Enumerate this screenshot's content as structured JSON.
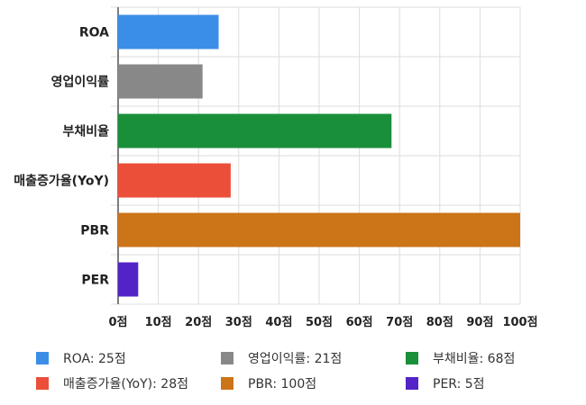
{
  "chart_data": {
    "type": "bar",
    "orientation": "horizontal",
    "categories": [
      "ROA",
      "영업이익률",
      "부채비율",
      "매출증가율(YoY)",
      "PBR",
      "PER"
    ],
    "values": [
      25,
      21,
      68,
      28,
      100,
      5
    ],
    "colors": [
      "#3b8ee6",
      "#888888",
      "#1a8f3a",
      "#eb4f3a",
      "#cc7418",
      "#5323c7"
    ],
    "xlim": [
      0,
      100
    ],
    "x_ticks": [
      "0점",
      "10점",
      "20점",
      "30점",
      "40점",
      "50점",
      "60점",
      "70점",
      "80점",
      "90점",
      "100점"
    ],
    "grid": true,
    "legend_position": "bottom",
    "legend": [
      {
        "label": "ROA: 25점",
        "color": "#3b8ee6"
      },
      {
        "label": "영업이익률: 21점",
        "color": "#888888"
      },
      {
        "label": "부채비율: 68점",
        "color": "#1a8f3a"
      },
      {
        "label": "매출증가율(YoY): 28점",
        "color": "#eb4f3a"
      },
      {
        "label": "PBR: 100점",
        "color": "#cc7418"
      },
      {
        "label": "PER: 5점",
        "color": "#5323c7"
      }
    ]
  }
}
